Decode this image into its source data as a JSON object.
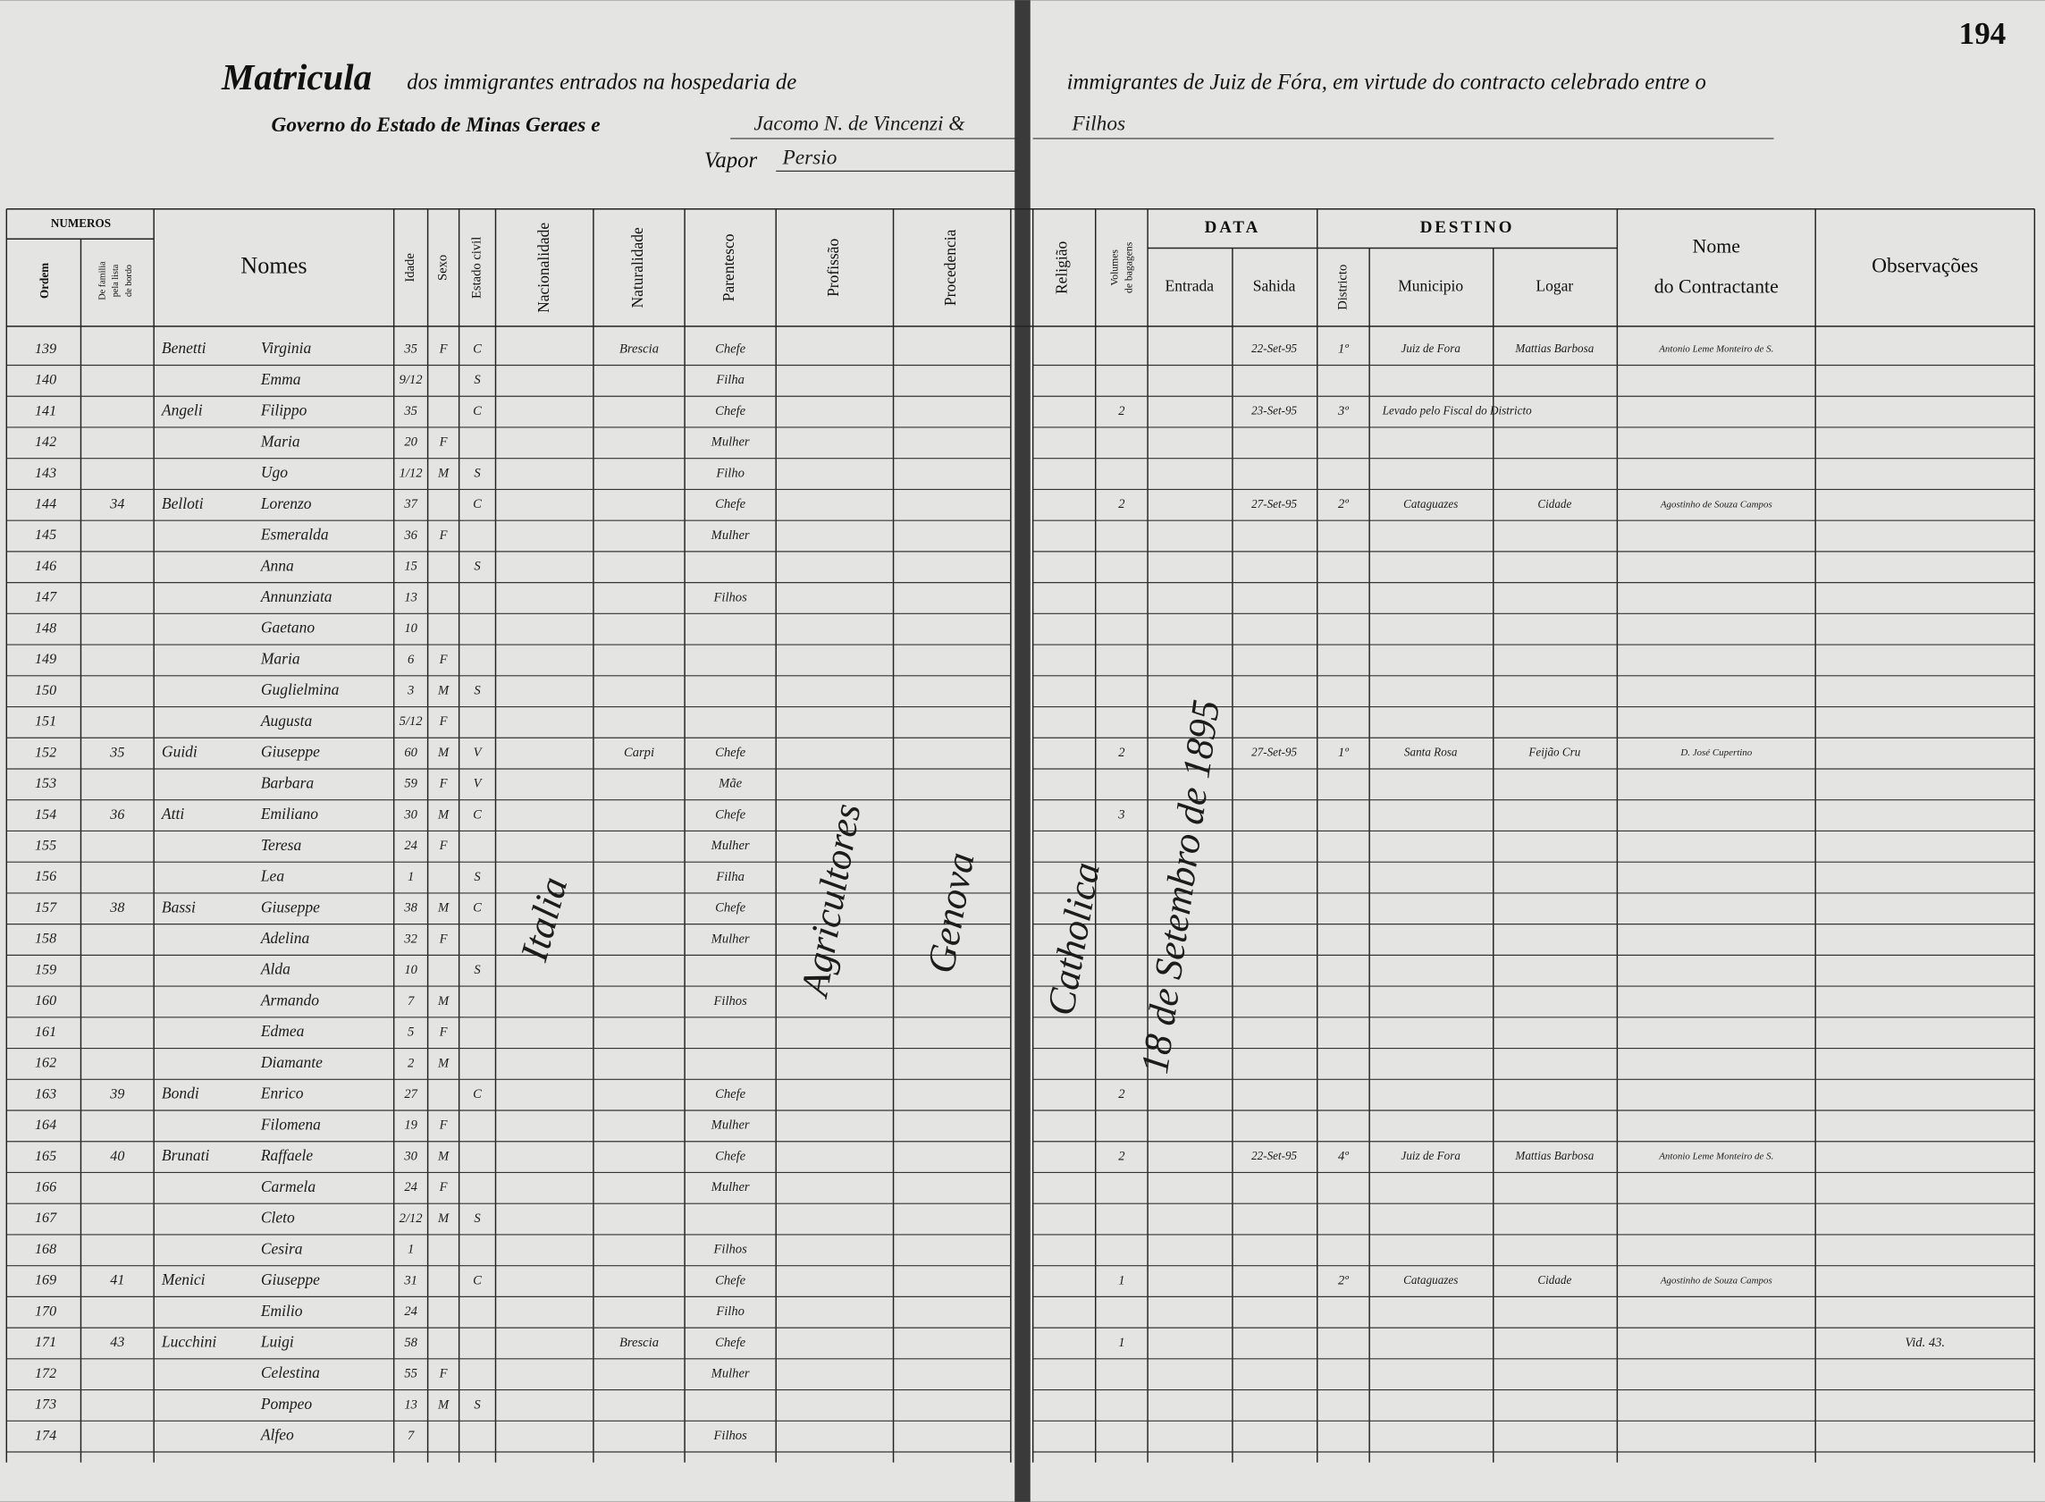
{
  "page_number": "194",
  "title": {
    "matricula": "Matricula",
    "left": "dos immigrantes entrados na hospedaria de",
    "right": "immigrantes de Juiz de Fóra, em virtude do contracto celebrado entre o",
    "line2": "Governo do Estado de Minas Geraes e",
    "contractor": "Jacomo N. de Vincenzi &",
    "contractor_cont": "Filhos",
    "vapor_label": "Vapor",
    "vapor": "Persio"
  },
  "columns": {
    "numeros": "NUMEROS",
    "ordem": "Ordem",
    "familia": [
      "De familia",
      "pela lista",
      "de bordo"
    ],
    "nomes": "Nomes",
    "idade": "Idade",
    "sexo": "Sexo",
    "estado_civil": "Estado civil",
    "nacionalidade": "Nacionalidade",
    "naturalidade": "Naturalidade",
    "parentesco": "Parentesco",
    "profissao": "Profissão",
    "procedencia": "Procedencia",
    "religiao": "Religião",
    "volumes": [
      "Volumes",
      "de bagagens"
    ],
    "data": "DATA",
    "entrada": "Entrada",
    "sahida": "Sahida",
    "districto": "Districto",
    "destino": "DESTINO",
    "municipio": "Municipio",
    "logar": "Logar",
    "contractante": [
      "Nome",
      "do Contractante"
    ],
    "observacoes": "Observações"
  },
  "shared": {
    "nacionalidade": "Italia",
    "profissao": "Agricultores",
    "procedencia": "Genova",
    "religiao": "Catholica",
    "entrada": "18 de Setembro de 1895"
  },
  "rows": [
    {
      "ordem": "139",
      "sobrenome": "Benetti",
      "nome": "Virginia",
      "idade": "35",
      "sexo": "F",
      "estado": "C",
      "naturalidade": "Brescia",
      "parentesco": "Chefe",
      "sahida": "22-Set-95",
      "districto": "1º",
      "municipio": "Juiz de Fora",
      "logar": "Mattias Barbosa",
      "contractante": "Antonio Leme Monteiro de S."
    },
    {
      "ordem": "140",
      "nome": "Emma",
      "idade": "9/12",
      "estado": "S",
      "parentesco": "Filha"
    },
    {
      "ordem": "141",
      "sobrenome": "Angeli",
      "nome": "Filippo",
      "idade": "35",
      "estado": "C",
      "parentesco": "Chefe",
      "volumes": "2",
      "sahida": "23-Set-95",
      "districto": "3º",
      "municipio": "Levado pelo Fiscal do Districto"
    },
    {
      "ordem": "142",
      "nome": "Maria",
      "idade": "20",
      "sexo": "F",
      "parentesco": "Mulher"
    },
    {
      "ordem": "143",
      "nome": "Ugo",
      "idade": "1/12",
      "sexo": "M",
      "estado": "S",
      "parentesco": "Filho"
    },
    {
      "ordem": "144",
      "familia": "34",
      "sobrenome": "Belloti",
      "nome": "Lorenzo",
      "idade": "37",
      "estado": "C",
      "parentesco": "Chefe",
      "volumes": "2",
      "sahida": "27-Set-95",
      "districto": "2º",
      "municipio": "Cataguazes",
      "logar": "Cidade",
      "contractante": "Agostinho de Souza Campos"
    },
    {
      "ordem": "145",
      "nome": "Esmeralda",
      "idade": "36",
      "sexo": "F",
      "parentesco": "Mulher"
    },
    {
      "ordem": "146",
      "nome": "Anna",
      "idade": "15",
      "estado": "S"
    },
    {
      "ordem": "147",
      "nome": "Annunziata",
      "idade": "13",
      "parentesco": "Filhos"
    },
    {
      "ordem": "148",
      "nome": "Gaetano",
      "idade": "10"
    },
    {
      "ordem": "149",
      "nome": "Maria",
      "idade": "6",
      "sexo": "F"
    },
    {
      "ordem": "150",
      "nome": "Guglielmina",
      "idade": "3",
      "sexo": "M",
      "estado": "S"
    },
    {
      "ordem": "151",
      "nome": "Augusta",
      "idade": "5/12",
      "sexo": "F"
    },
    {
      "ordem": "152",
      "familia": "35",
      "sobrenome": "Guidi",
      "nome": "Giuseppe",
      "idade": "60",
      "sexo": "M",
      "estado": "V",
      "naturalidade": "Carpi",
      "parentesco": "Chefe",
      "volumes": "2",
      "sahida": "27-Set-95",
      "districto": "1º",
      "municipio": "Santa Rosa",
      "logar": "Feijão Cru",
      "contractante": "D. José Cupertino"
    },
    {
      "ordem": "153",
      "nome": "Barbara",
      "idade": "59",
      "sexo": "F",
      "estado": "V",
      "parentesco": "Mãe"
    },
    {
      "ordem": "154",
      "familia": "36",
      "sobrenome": "Atti",
      "nome": "Emiliano",
      "idade": "30",
      "sexo": "M",
      "estado": "C",
      "parentesco": "Chefe",
      "volumes": "3"
    },
    {
      "ordem": "155",
      "nome": "Teresa",
      "idade": "24",
      "sexo": "F",
      "parentesco": "Mulher"
    },
    {
      "ordem": "156",
      "nome": "Lea",
      "idade": "1",
      "estado": "S",
      "parentesco": "Filha"
    },
    {
      "ordem": "157",
      "familia": "38",
      "sobrenome": "Bassi",
      "nome": "Giuseppe",
      "idade": "38",
      "sexo": "M",
      "estado": "C",
      "parentesco": "Chefe"
    },
    {
      "ordem": "158",
      "nome": "Adelina",
      "idade": "32",
      "sexo": "F",
      "parentesco": "Mulher"
    },
    {
      "ordem": "159",
      "nome": "Alda",
      "idade": "10",
      "estado": "S"
    },
    {
      "ordem": "160",
      "nome": "Armando",
      "idade": "7",
      "sexo": "M",
      "parentesco": "Filhos"
    },
    {
      "ordem": "161",
      "nome": "Edmea",
      "idade": "5",
      "sexo": "F"
    },
    {
      "ordem": "162",
      "nome": "Diamante",
      "idade": "2",
      "sexo": "M"
    },
    {
      "ordem": "163",
      "familia": "39",
      "sobrenome": "Bondi",
      "nome": "Enrico",
      "idade": "27",
      "estado": "C",
      "parentesco": "Chefe",
      "volumes": "2"
    },
    {
      "ordem": "164",
      "nome": "Filomena",
      "idade": "19",
      "sexo": "F",
      "parentesco": "Mulher"
    },
    {
      "ordem": "165",
      "familia": "40",
      "sobrenome": "Brunati",
      "nome": "Raffaele",
      "idade": "30",
      "sexo": "M",
      "parentesco": "Chefe",
      "volumes": "2",
      "sahida": "22-Set-95",
      "districto": "4º",
      "municipio": "Juiz de Fora",
      "logar": "Mattias Barbosa",
      "contractante": "Antonio Leme Monteiro de S."
    },
    {
      "ordem": "166",
      "nome": "Carmela",
      "idade": "24",
      "sexo": "F",
      "parentesco": "Mulher"
    },
    {
      "ordem": "167",
      "nome": "Cleto",
      "idade": "2/12",
      "sexo": "M",
      "estado": "S"
    },
    {
      "ordem": "168",
      "nome": "Cesira",
      "idade": "1",
      "parentesco": "Filhos"
    },
    {
      "ordem": "169",
      "familia": "41",
      "sobrenome": "Menici",
      "nome": "Giuseppe",
      "idade": "31",
      "estado": "C",
      "parentesco": "Chefe",
      "volumes": "1",
      "districto": "2º",
      "municipio": "Cataguazes",
      "logar": "Cidade",
      "contractante": "Agostinho de Souza Campos"
    },
    {
      "ordem": "170",
      "nome": "Emilio",
      "idade": "24",
      "parentesco": "Filho"
    },
    {
      "ordem": "171",
      "familia": "43",
      "sobrenome": "Lucchini",
      "nome": "Luigi",
      "idade": "58",
      "naturalidade": "Brescia",
      "parentesco": "Chefe",
      "volumes": "1",
      "observacoes": "Vid. 43."
    },
    {
      "ordem": "172",
      "nome": "Celestina",
      "idade": "55",
      "sexo": "F",
      "parentesco": "Mulher"
    },
    {
      "ordem": "173",
      "nome": "Pompeo",
      "idade": "13",
      "sexo": "M",
      "estado": "S"
    },
    {
      "ordem": "174",
      "nome": "Alfeo",
      "idade": "7",
      "parentesco": "Filhos"
    }
  ]
}
